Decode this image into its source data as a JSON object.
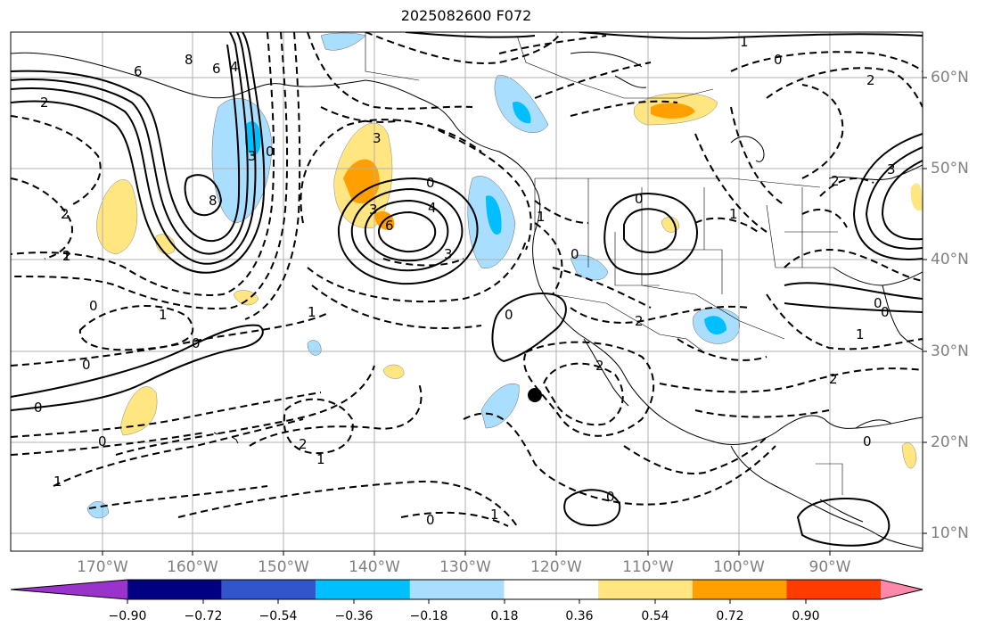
{
  "title": "2025082600 F072",
  "lon_labels": [
    "170°W",
    "160°W",
    "150°W",
    "140°W",
    "130°W",
    "120°W",
    "110°W",
    "100°W",
    "90°W"
  ],
  "lat_labels": [
    "60°N",
    "50°N",
    "40°N",
    "30°N",
    "20°N",
    "10°N"
  ],
  "colorbar": {
    "ticks": [
      "−0.90",
      "−0.72",
      "−0.54",
      "−0.36",
      "−0.18",
      "0.18",
      "0.36",
      "0.54",
      "0.72",
      "0.90"
    ],
    "colors": [
      "#9933cc",
      "#000080",
      "#3355cc",
      "#00bfff",
      "#aadeff",
      "#ffffff",
      "#ffe680",
      "#ffa000",
      "#ff3c00",
      "#b22222",
      "#ff88aa"
    ]
  },
  "contour_labels": [
    "2",
    "6",
    "8",
    "6",
    "4",
    "0",
    "3",
    "2",
    "1",
    "0",
    "1",
    "0",
    "2",
    "3",
    "8",
    "3",
    "0",
    "4",
    "6",
    "3",
    "1",
    "1",
    "0",
    "0",
    "2",
    "0",
    "1",
    "0",
    "2",
    "1",
    "0",
    "0",
    "2",
    "3",
    "2",
    "0",
    "1",
    "0",
    "1",
    "0",
    "0",
    "2",
    "1",
    "0",
    "0",
    "1",
    "2"
  ],
  "marker": "storm-position-dot"
}
